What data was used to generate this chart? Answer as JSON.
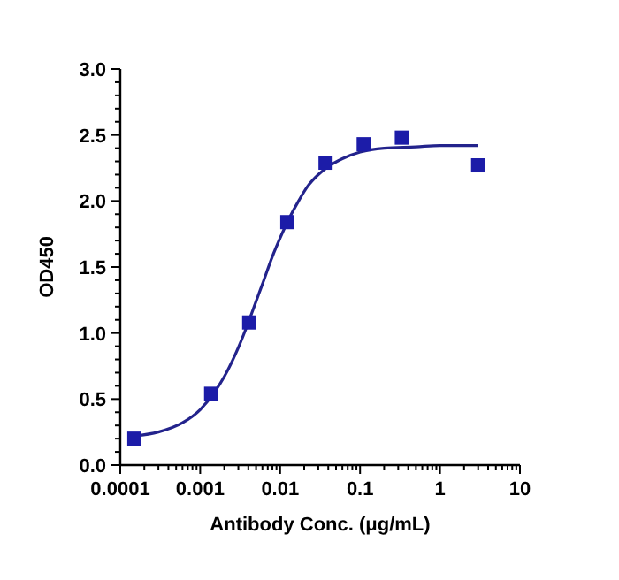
{
  "chart_data": {
    "type": "scatter",
    "xlabel": "Antibody Conc. (μg/mL)",
    "ylabel": "OD450",
    "log": "x",
    "xlim": [
      0.0001,
      10
    ],
    "ylim": [
      0,
      3
    ],
    "xticks": [
      {
        "value": 0.0001,
        "label": "0.0001"
      },
      {
        "value": 0.0002,
        "label": null
      },
      {
        "value": 0.0003,
        "label": null
      },
      {
        "value": 0.0004,
        "label": null
      },
      {
        "value": 0.0005,
        "label": null
      },
      {
        "value": 0.0006,
        "label": null
      },
      {
        "value": 0.0007,
        "label": null
      },
      {
        "value": 0.0008,
        "label": null
      },
      {
        "value": 0.0009,
        "label": null
      },
      {
        "value": 0.001,
        "label": "0.001"
      },
      {
        "value": 0.002,
        "label": null
      },
      {
        "value": 0.003,
        "label": null
      },
      {
        "value": 0.004,
        "label": null
      },
      {
        "value": 0.005,
        "label": null
      },
      {
        "value": 0.006,
        "label": null
      },
      {
        "value": 0.007,
        "label": null
      },
      {
        "value": 0.008,
        "label": null
      },
      {
        "value": 0.009,
        "label": null
      },
      {
        "value": 0.01,
        "label": "0.01"
      },
      {
        "value": 0.02,
        "label": null
      },
      {
        "value": 0.03,
        "label": null
      },
      {
        "value": 0.04,
        "label": null
      },
      {
        "value": 0.05,
        "label": null
      },
      {
        "value": 0.06,
        "label": null
      },
      {
        "value": 0.07,
        "label": null
      },
      {
        "value": 0.08,
        "label": null
      },
      {
        "value": 0.09,
        "label": null
      },
      {
        "value": 0.1,
        "label": "0.1"
      },
      {
        "value": 0.2,
        "label": null
      },
      {
        "value": 0.3,
        "label": null
      },
      {
        "value": 0.4,
        "label": null
      },
      {
        "value": 0.5,
        "label": null
      },
      {
        "value": 0.6,
        "label": null
      },
      {
        "value": 0.7,
        "label": null
      },
      {
        "value": 0.8,
        "label": null
      },
      {
        "value": 0.9,
        "label": null
      },
      {
        "value": 1,
        "label": "1"
      },
      {
        "value": 2,
        "label": null
      },
      {
        "value": 3,
        "label": null
      },
      {
        "value": 4,
        "label": null
      },
      {
        "value": 5,
        "label": null
      },
      {
        "value": 6,
        "label": null
      },
      {
        "value": 7,
        "label": null
      },
      {
        "value": 8,
        "label": null
      },
      {
        "value": 9,
        "label": null
      },
      {
        "value": 10,
        "label": "10"
      }
    ],
    "yticks": [
      {
        "value": 0,
        "label": "0.0"
      },
      {
        "value": 0.1,
        "label": null
      },
      {
        "value": 0.2,
        "label": null
      },
      {
        "value": 0.3,
        "label": null
      },
      {
        "value": 0.4,
        "label": null
      },
      {
        "value": 0.5,
        "label": "0.5"
      },
      {
        "value": 0.6,
        "label": null
      },
      {
        "value": 0.7,
        "label": null
      },
      {
        "value": 0.8,
        "label": null
      },
      {
        "value": 0.9,
        "label": null
      },
      {
        "value": 1,
        "label": "1.0"
      },
      {
        "value": 1.1,
        "label": null
      },
      {
        "value": 1.2,
        "label": null
      },
      {
        "value": 1.3,
        "label": null
      },
      {
        "value": 1.4,
        "label": null
      },
      {
        "value": 1.5,
        "label": "1.5"
      },
      {
        "value": 1.6,
        "label": null
      },
      {
        "value": 1.7,
        "label": null
      },
      {
        "value": 1.8,
        "label": null
      },
      {
        "value": 1.9,
        "label": null
      },
      {
        "value": 2,
        "label": "2.0"
      },
      {
        "value": 2.1,
        "label": null
      },
      {
        "value": 2.2,
        "label": null
      },
      {
        "value": 2.3,
        "label": null
      },
      {
        "value": 2.4,
        "label": null
      },
      {
        "value": 2.5,
        "label": "2.5"
      },
      {
        "value": 2.6,
        "label": null
      },
      {
        "value": 2.7,
        "label": null
      },
      {
        "value": 2.8,
        "label": null
      },
      {
        "value": 2.9,
        "label": null
      },
      {
        "value": 3,
        "label": "3.0"
      }
    ],
    "grid": false,
    "marker": "square",
    "series": [
      {
        "type": "line",
        "color": "#23238c",
        "line_style": "solid",
        "marker": "none",
        "x": [
          0.00015,
          0.0003,
          0.0006,
          0.001,
          0.0015,
          0.002,
          0.003,
          0.004,
          0.005,
          0.006,
          0.008,
          0.01,
          0.013,
          0.017,
          0.022,
          0.03,
          0.04,
          0.06,
          0.1,
          0.2,
          0.5,
          1,
          3
        ],
        "values": [
          0.22,
          0.25,
          0.32,
          0.42,
          0.55,
          0.67,
          0.89,
          1.08,
          1.24,
          1.37,
          1.58,
          1.72,
          1.87,
          2.0,
          2.11,
          2.2,
          2.26,
          2.32,
          2.37,
          2.4,
          2.41,
          2.42,
          2.42
        ]
      },
      {
        "color": "#1c1ca8",
        "x": [
          0.00015,
          0.00137,
          0.0041,
          0.0123,
          0.037,
          0.111,
          0.333,
          3
        ],
        "values": [
          0.2,
          0.54,
          1.08,
          1.84,
          2.29,
          2.43,
          2.48,
          2.27
        ]
      }
    ]
  }
}
